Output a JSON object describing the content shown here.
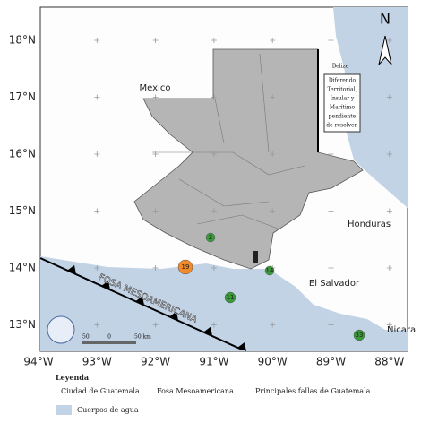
{
  "map": {
    "lat_labels": [
      "18°N",
      "17°N",
      "16°N",
      "15°N",
      "14°N",
      "13°N"
    ],
    "lon_labels": [
      "94°W",
      "93°W",
      "92°W",
      "91°W",
      "90°W",
      "89°W",
      "88°W"
    ],
    "north": "N",
    "countries": {
      "mexico": "Mexico",
      "belize": "Belize",
      "honduras": "Honduras",
      "el_salvador": "El Salvador",
      "nicaragua": "Nicara"
    },
    "dispute": [
      "Diferendo",
      "Territorial,",
      "Insular y",
      "Marítimo",
      "pendiente",
      "de resolver."
    ],
    "trench": "FOSA MESOAMERICANA",
    "markers": [
      "2",
      "19",
      "11",
      "14",
      "33"
    ],
    "scale": [
      "50",
      "0",
      "50 km"
    ]
  },
  "legend": {
    "title": "Leyenda",
    "items": [
      "Ciudad de Guatemala",
      "Fosa Mesoamericana",
      "Principales fallas de Guatemala",
      "Cuerpos de agua"
    ]
  }
}
